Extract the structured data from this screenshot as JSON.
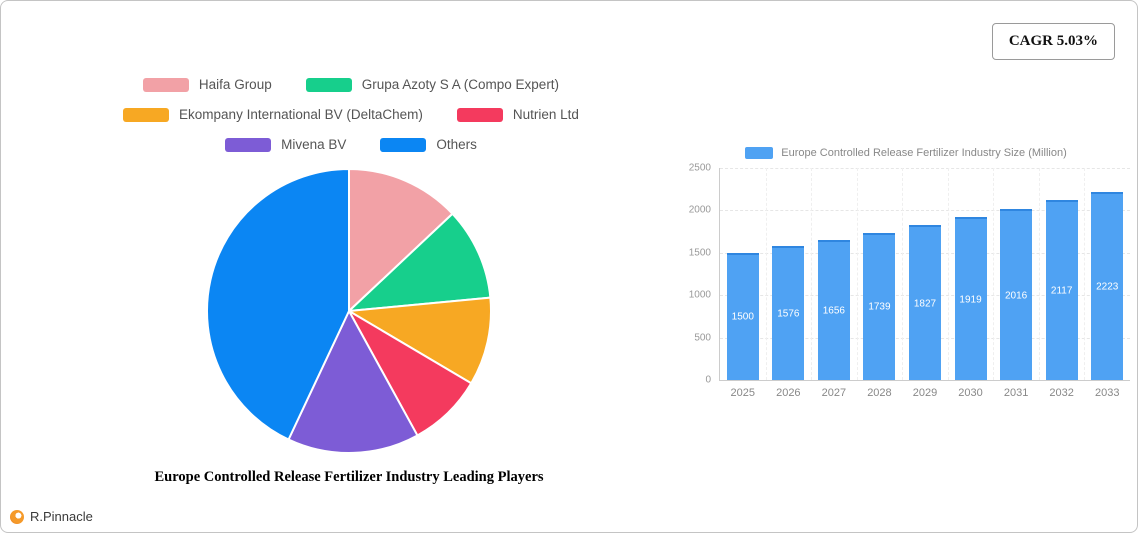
{
  "page": {
    "cagr_label": "CAGR 5.03%",
    "brand": "R.Pinnacle"
  },
  "chart_data": [
    {
      "type": "pie",
      "title": "Europe Controlled Release Fertilizer Industry Leading Players",
      "legend_position": "top",
      "labels": [
        "Haifa Group",
        "Grupa Azoty S A  (Compo Expert)",
        "Ekompany International BV (DeltaChem)",
        "Nutrien Ltd",
        "Mivena BV",
        "Others"
      ],
      "values": [
        13,
        10.5,
        10,
        8.5,
        15,
        43
      ],
      "colors": [
        "#f2a1a6",
        "#17cf8c",
        "#f7a823",
        "#f43a5e",
        "#7d5cd6",
        "#0b86f3"
      ]
    },
    {
      "type": "bar",
      "legend": "Europe Controlled Release Fertilizer Industry Size (Million)",
      "categories": [
        "2025",
        "2026",
        "2027",
        "2028",
        "2029",
        "2030",
        "2031",
        "2032",
        "2033"
      ],
      "values": [
        1500,
        1576,
        1656,
        1739,
        1827,
        1919,
        2016,
        2117,
        2223
      ],
      "bar_color": "#4fa2f3",
      "ylim": [
        0,
        2500
      ],
      "yticks": [
        0,
        500,
        1000,
        1500,
        2000,
        2500
      ],
      "grid": true,
      "legend_position": "top"
    }
  ]
}
